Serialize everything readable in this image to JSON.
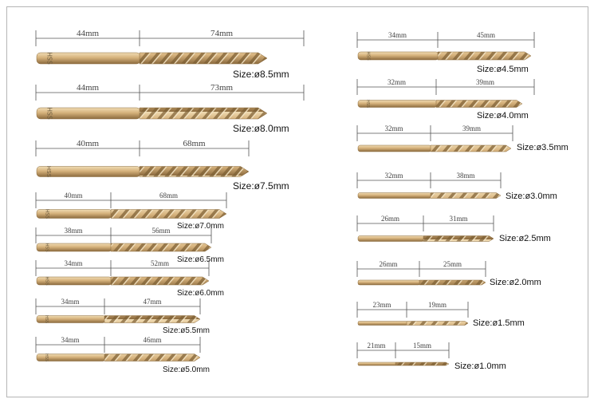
{
  "bits": [
    {
      "shank_label": "44mm",
      "flute_label": "74mm",
      "size_label": "Size:ø8.5mm",
      "shank_text": "HSS"
    },
    {
      "shank_label": "44mm",
      "flute_label": "73mm",
      "size_label": "Size:ø8.0mm",
      "shank_text": "HSS"
    },
    {
      "shank_label": "40mm",
      "flute_label": "68mm",
      "size_label": "Size:ø7.5mm",
      "shank_text": "HSS"
    },
    {
      "shank_label": "40mm",
      "flute_label": "68mm",
      "size_label": "Size:ø7.0mm",
      "shank_text": "HSS"
    },
    {
      "shank_label": "38mm",
      "flute_label": "56mm",
      "size_label": "Size:ø6.5mm",
      "shank_text": "HSS"
    },
    {
      "shank_label": "34mm",
      "flute_label": "52mm",
      "size_label": "Size:ø6.0mm",
      "shank_text": "HSS"
    },
    {
      "shank_label": "34mm",
      "flute_label": "47mm",
      "size_label": "Size:ø5.5mm",
      "shank_text": "HSS"
    },
    {
      "shank_label": "34mm",
      "flute_label": "46mm",
      "size_label": "Size:ø5.0mm",
      "shank_text": "HSS"
    },
    {
      "shank_label": "34mm",
      "flute_label": "45mm",
      "size_label": "Size:ø4.5mm",
      "shank_text": "HSS"
    },
    {
      "shank_label": "32mm",
      "flute_label": "39mm",
      "size_label": "Size:ø4.0mm",
      "shank_text": "HSS"
    },
    {
      "shank_label": "32mm",
      "flute_label": "39mm",
      "size_label": "Size:ø3.5mm",
      "shank_text": ""
    },
    {
      "shank_label": "32mm",
      "flute_label": "38mm",
      "size_label": "Size:ø3.0mm",
      "shank_text": ""
    },
    {
      "shank_label": "26mm",
      "flute_label": "31mm",
      "size_label": "Size:ø2.5mm",
      "shank_text": ""
    },
    {
      "shank_label": "26mm",
      "flute_label": "25mm",
      "size_label": "Size:ø2.0mm",
      "shank_text": ""
    },
    {
      "shank_label": "23mm",
      "flute_label": "19mm",
      "size_label": "Size:ø1.5mm",
      "shank_text": ""
    },
    {
      "shank_label": "21mm",
      "flute_label": "15mm",
      "size_label": "Size:ø1.0mm",
      "shank_text": ""
    }
  ],
  "colors": {
    "bronze_light": "#e4c99a",
    "bronze_mid": "#c9a26a",
    "bronze_dark": "#8a6a3c",
    "dim_line": "#555555"
  }
}
